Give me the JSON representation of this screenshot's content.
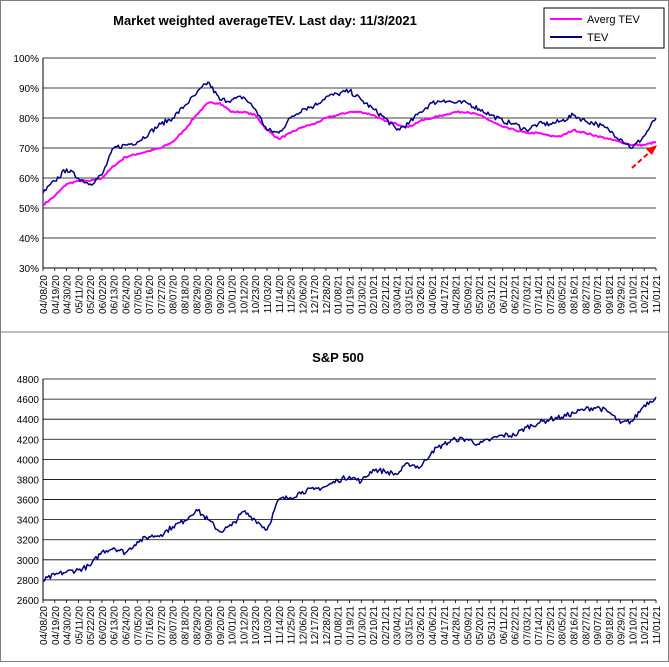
{
  "colors": {
    "tev": "#000080",
    "avg_tev": "#ff00ff",
    "arrow": "#ff0000",
    "grid": "#000000"
  },
  "chart_data": [
    {
      "type": "line",
      "title": "Market weighted averageTEV. Last day: 11/3/2021",
      "ylim": [
        0.3,
        1.0
      ],
      "yticks": [
        "30%",
        "40%",
        "50%",
        "60%",
        "70%",
        "80%",
        "90%",
        "100%"
      ],
      "legend": {
        "placement": "top-right",
        "entries": [
          "Averg TEV",
          "TEV"
        ]
      },
      "grid": "horizontal",
      "x": [
        "04/08/20",
        "04/19/20",
        "04/30/20",
        "05/11/20",
        "05/22/20",
        "06/02/20",
        "06/13/20",
        "06/24/20",
        "07/05/20",
        "07/16/20",
        "07/27/20",
        "08/07/20",
        "08/18/20",
        "08/29/20",
        "09/09/20",
        "09/20/20",
        "10/01/20",
        "10/12/20",
        "10/23/20",
        "11/03/20",
        "11/14/20",
        "11/25/20",
        "12/06/20",
        "12/17/20",
        "12/28/20",
        "01/08/21",
        "01/19/21",
        "01/30/21",
        "02/10/21",
        "02/21/21",
        "03/04/21",
        "03/15/21",
        "03/26/21",
        "04/06/21",
        "04/17/21",
        "04/28/21",
        "05/09/21",
        "05/20/21",
        "05/31/21",
        "06/11/21",
        "06/22/21",
        "07/03/21",
        "07/14/21",
        "07/25/21",
        "08/05/21",
        "08/16/21",
        "08/27/21",
        "09/07/21",
        "09/18/21",
        "09/29/21",
        "10/10/21",
        "10/21/21",
        "11/01/21"
      ],
      "series": [
        {
          "name": "Averg TEV",
          "values": [
            0.51,
            0.54,
            0.58,
            0.59,
            0.59,
            0.6,
            0.64,
            0.67,
            0.68,
            0.69,
            0.7,
            0.72,
            0.76,
            0.81,
            0.85,
            0.85,
            0.82,
            0.82,
            0.81,
            0.76,
            0.73,
            0.75,
            0.77,
            0.78,
            0.8,
            0.81,
            0.82,
            0.82,
            0.81,
            0.79,
            0.78,
            0.77,
            0.79,
            0.8,
            0.81,
            0.82,
            0.82,
            0.81,
            0.79,
            0.77,
            0.76,
            0.75,
            0.75,
            0.74,
            0.74,
            0.76,
            0.75,
            0.74,
            0.73,
            0.72,
            0.71,
            0.71,
            0.72
          ]
        },
        {
          "name": "TEV",
          "values": [
            0.55,
            0.59,
            0.63,
            0.6,
            0.58,
            0.61,
            0.7,
            0.71,
            0.72,
            0.75,
            0.78,
            0.8,
            0.84,
            0.88,
            0.92,
            0.86,
            0.86,
            0.87,
            0.83,
            0.76,
            0.75,
            0.8,
            0.83,
            0.84,
            0.87,
            0.88,
            0.89,
            0.86,
            0.83,
            0.8,
            0.76,
            0.78,
            0.82,
            0.85,
            0.86,
            0.85,
            0.85,
            0.83,
            0.81,
            0.79,
            0.78,
            0.76,
            0.78,
            0.78,
            0.79,
            0.81,
            0.79,
            0.78,
            0.76,
            0.73,
            0.7,
            0.74,
            0.8
          ]
        }
      ],
      "annotation": "red dashed trend arrow at right end"
    },
    {
      "type": "line",
      "title": "S&P 500",
      "ylim": [
        2600,
        4800
      ],
      "yticks": [
        "2600",
        "2800",
        "3000",
        "3200",
        "3400",
        "3600",
        "3800",
        "4000",
        "4200",
        "4400",
        "4600",
        "4800"
      ],
      "grid": "horizontal",
      "x": [
        "04/08/20",
        "04/19/20",
        "04/30/20",
        "05/11/20",
        "05/22/20",
        "06/02/20",
        "06/13/20",
        "06/24/20",
        "07/05/20",
        "07/16/20",
        "07/27/20",
        "08/07/20",
        "08/18/20",
        "08/29/20",
        "09/09/20",
        "09/20/20",
        "10/01/20",
        "10/12/20",
        "10/23/20",
        "11/03/20",
        "11/14/20",
        "11/25/20",
        "12/06/20",
        "12/17/20",
        "12/28/20",
        "01/08/21",
        "01/19/21",
        "01/30/21",
        "02/10/21",
        "02/21/21",
        "03/04/21",
        "03/15/21",
        "03/26/21",
        "04/06/21",
        "04/17/21",
        "04/28/21",
        "05/09/21",
        "05/20/21",
        "05/31/21",
        "06/11/21",
        "06/22/21",
        "07/03/21",
        "07/14/21",
        "07/25/21",
        "08/05/21",
        "08/16/21",
        "08/27/21",
        "09/07/21",
        "09/18/21",
        "09/29/21",
        "10/10/21",
        "10/21/21",
        "11/01/21"
      ],
      "series": [
        {
          "name": "S&P 500",
          "values": [
            2790,
            2850,
            2880,
            2900,
            2940,
            3080,
            3120,
            3070,
            3180,
            3230,
            3250,
            3330,
            3390,
            3500,
            3400,
            3280,
            3340,
            3480,
            3400,
            3300,
            3600,
            3620,
            3680,
            3700,
            3730,
            3790,
            3830,
            3780,
            3900,
            3880,
            3850,
            3960,
            3920,
            4080,
            4150,
            4200,
            4200,
            4150,
            4200,
            4240,
            4240,
            4320,
            4360,
            4400,
            4420,
            4460,
            4500,
            4520,
            4470,
            4360,
            4380,
            4540,
            4620
          ]
        }
      ]
    }
  ]
}
